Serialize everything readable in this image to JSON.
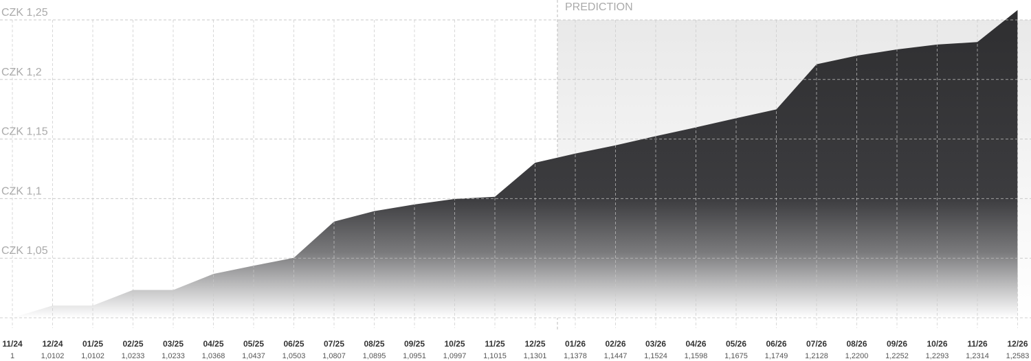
{
  "chart_data": {
    "type": "area",
    "prediction_label": "PREDICTION",
    "categories": [
      "11/24",
      "12/24",
      "01/25",
      "02/25",
      "03/25",
      "04/25",
      "05/25",
      "06/25",
      "07/25",
      "08/25",
      "09/25",
      "10/25",
      "11/25",
      "12/25",
      "01/26",
      "02/26",
      "03/26",
      "04/26",
      "05/26",
      "06/26",
      "07/26",
      "08/26",
      "09/26",
      "10/26",
      "11/26",
      "12/26"
    ],
    "values": [
      1,
      1.0102,
      1.0102,
      1.0233,
      1.0233,
      1.0368,
      1.0437,
      1.0503,
      1.0807,
      1.0895,
      1.0951,
      1.0997,
      1.1015,
      1.1301,
      1.1378,
      1.1447,
      1.1524,
      1.1598,
      1.1675,
      1.1749,
      1.2128,
      1.22,
      1.2252,
      1.2293,
      1.2314,
      1.2583
    ],
    "value_labels": [
      "1",
      "1,0102",
      "1,0102",
      "1,0233",
      "1,0233",
      "1,0368",
      "1,0437",
      "1,0503",
      "1,0807",
      "1,0895",
      "1,0951",
      "1,0997",
      "1,1015",
      "1,1301",
      "1,1378",
      "1,1447",
      "1,1524",
      "1,1598",
      "1,1675",
      "1,1749",
      "1,2128",
      "1,2200",
      "1,2252",
      "1,2293",
      "1,2314",
      "1,2583"
    ],
    "color": "#3a3a3d",
    "ylim": [
      1,
      1.25
    ],
    "yticks": [
      {
        "value": 1.05,
        "label": "CZK 1,05"
      },
      {
        "value": 1.1,
        "label": "CZK 1,1"
      },
      {
        "value": 1.15,
        "label": "CZK 1,15"
      },
      {
        "value": 1.2,
        "label": "CZK 1,2"
      },
      {
        "value": 1.25,
        "label": "CZK 1,25"
      }
    ],
    "grid": true
  }
}
